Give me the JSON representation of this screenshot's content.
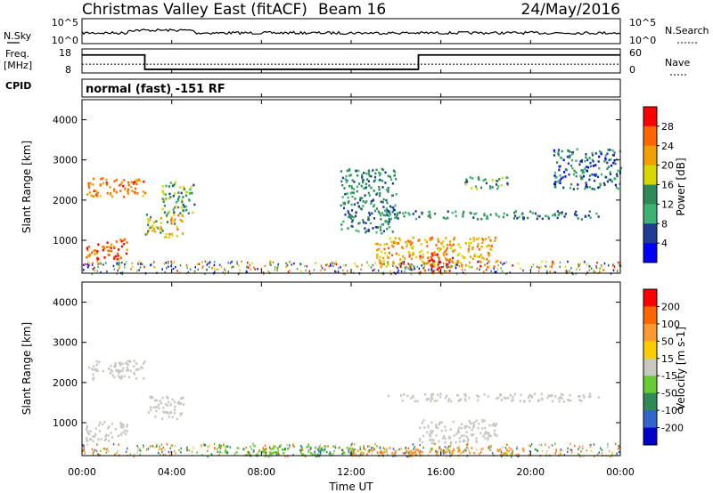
{
  "header": {
    "station": "Christmas Valley East (fitACF)",
    "beam": "Beam 16",
    "date": "24/May/2016"
  },
  "left_labels": {
    "nsky": "N.Sky",
    "freq": "Freq.",
    "freq_unit": "[MHz]",
    "cpid": "CPID"
  },
  "right_labels": {
    "nsearch": "N.Search",
    "nave": "Nave"
  },
  "cpid_text": "normal (fast) -151 RF",
  "noise_panel": {
    "left_ticks": [
      "10^5",
      "10^0"
    ],
    "right_ticks": [
      "10^5",
      "10^0"
    ]
  },
  "freq_panel": {
    "left_ticks": [
      "18",
      "8"
    ],
    "right_ticks": [
      "60",
      "0"
    ]
  },
  "power_panel": {
    "ylabel": "Slant Range [km]",
    "colorbar_label": "Power [dB]",
    "colorbar_ticks": [
      "28",
      "24",
      "20",
      "16",
      "12",
      "8",
      "4"
    ],
    "colors": [
      "#ff0000",
      "#ff6600",
      "#f0a000",
      "#d8d800",
      "#2e8b57",
      "#3cb371",
      "#1e3c96",
      "#0000ff"
    ]
  },
  "velocity_panel": {
    "ylabel": "Slant Range [km]",
    "colorbar_label": "Velocity [m s-1]",
    "colorbar_ticks": [
      "200",
      "100",
      "50",
      "15",
      "-15",
      "-50",
      "-100",
      "-200"
    ],
    "colors": [
      "#ff0000",
      "#ff6600",
      "#ff9933",
      "#ffcc00",
      "#c8c8c0",
      "#66cc33",
      "#2e8b57",
      "#3366cc",
      "#0000cc"
    ]
  },
  "xlabel": "Time UT",
  "chart_data": {
    "type": "heatmap",
    "x_ticks": [
      "00:00",
      "04:00",
      "08:00",
      "12:00",
      "16:00",
      "20:00",
      "00:00"
    ],
    "xlim_hours": [
      0,
      24
    ],
    "y_ticks": [
      1000,
      2000,
      3000,
      4000
    ],
    "ylim_km": [
      180,
      4500
    ],
    "frequency_mhz": [
      {
        "start": 0,
        "end": 2.8,
        "value": 15.5
      },
      {
        "start": 2.8,
        "end": 15,
        "value": 9.5
      },
      {
        "start": 15,
        "end": 24,
        "value": 15.5
      }
    ],
    "nave": 22,
    "power_regions": [
      {
        "t0": 0.2,
        "t1": 2.8,
        "r0": 2100,
        "r1": 2600,
        "level": 22
      },
      {
        "t0": 0.1,
        "t1": 2.0,
        "r0": 550,
        "r1": 1050,
        "level": 24
      },
      {
        "t0": 2.8,
        "t1": 4.5,
        "r0": 1100,
        "r1": 1700,
        "level": 18
      },
      {
        "t0": 3.5,
        "t1": 5.0,
        "r0": 1700,
        "r1": 2500,
        "level": 12
      },
      {
        "t0": 11.5,
        "t1": 14.0,
        "r0": 1200,
        "r1": 2800,
        "level": 10
      },
      {
        "t0": 13.0,
        "t1": 18.5,
        "r0": 350,
        "r1": 1100,
        "level": 20
      },
      {
        "t0": 15.0,
        "t1": 16.5,
        "r0": 200,
        "r1": 700,
        "level": 26
      },
      {
        "t0": 13.5,
        "t1": 23.0,
        "r0": 1550,
        "r1": 1750,
        "level": 10
      },
      {
        "t0": 17.0,
        "t1": 19.0,
        "r0": 2300,
        "r1": 2600,
        "level": 12
      },
      {
        "t0": 21.0,
        "t1": 24.0,
        "r0": 2300,
        "r1": 3300,
        "level": 8
      }
    ],
    "velocity_regions": [
      {
        "t0": 0.2,
        "t1": 2.8,
        "r0": 2100,
        "r1": 2600,
        "v": 0
      },
      {
        "t0": 0.1,
        "t1": 2.0,
        "r0": 550,
        "r1": 1050,
        "v": 0
      },
      {
        "t0": 2.8,
        "t1": 4.5,
        "r0": 1100,
        "r1": 1700,
        "v": 0
      },
      {
        "t0": 15.0,
        "t1": 18.5,
        "r0": 500,
        "r1": 1100,
        "v": 0
      },
      {
        "t0": 13.5,
        "t1": 23.0,
        "r0": 1550,
        "r1": 1750,
        "v": 0
      },
      {
        "t0": 6.0,
        "t1": 12.0,
        "r0": 200,
        "r1": 450,
        "v": 40
      },
      {
        "t0": 12.0,
        "t1": 20.0,
        "r0": 200,
        "r1": 400,
        "v": -40
      }
    ]
  }
}
